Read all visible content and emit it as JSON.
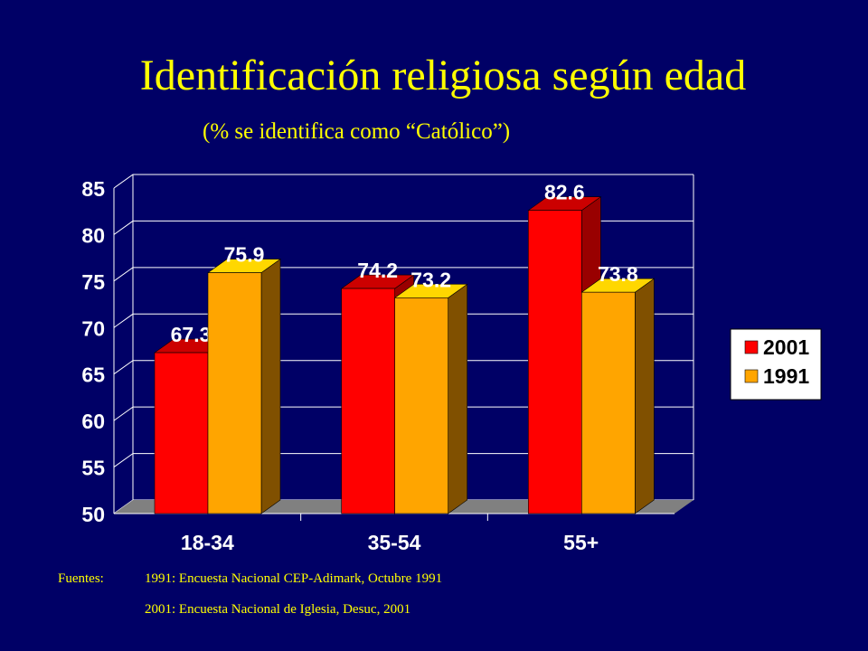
{
  "slide": {
    "title": "Identificación religiosa según edad",
    "subtitle": "(%  se identifica como “Católico”)"
  },
  "chart_data": {
    "type": "bar",
    "categories": [
      "18-34",
      "35-54",
      "55+"
    ],
    "series": [
      {
        "name": "2001",
        "values": [
          67.3,
          74.2,
          82.6
        ],
        "color": "#ff0000",
        "side_color": "#990000",
        "top_color": "#cc0000"
      },
      {
        "name": "1991",
        "values": [
          75.9,
          73.2,
          73.8
        ],
        "color": "#ffa500",
        "side_color": "#805000",
        "top_color": "#ffd700"
      }
    ],
    "ylim": [
      50,
      85
    ],
    "yticks": [
      "50",
      "55",
      "60",
      "65",
      "70",
      "75",
      "80",
      "85"
    ],
    "value_labels": [
      "67.3",
      "75.9",
      "74.2",
      "73.2",
      "82.6",
      "73.8"
    ],
    "grid": true,
    "legend": "right",
    "colors": {
      "background": "#000066",
      "text": "#ffff00",
      "labels": "#ffffff",
      "grid": "#ffffff",
      "floor": "#808080"
    }
  },
  "sources": {
    "label": "Fuentes:",
    "line1": "1991: Encuesta Nacional CEP-Adimark, Octubre 1991",
    "line2": "2001: Encuesta Nacional de Iglesia, Desuc, 2001"
  }
}
